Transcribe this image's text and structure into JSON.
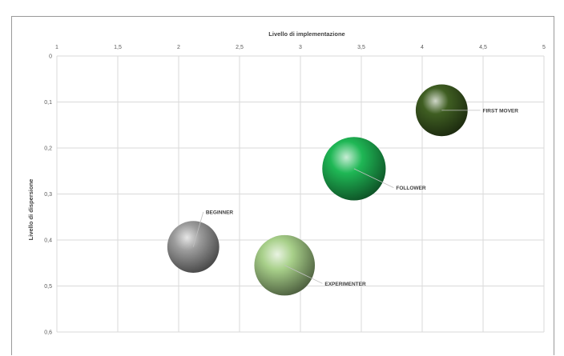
{
  "chart_data": {
    "type": "bubble",
    "xlabel": "Livello di implementazione",
    "ylabel": "Livello di dispersione",
    "xlim": [
      1,
      5
    ],
    "ylim": [
      0,
      0.6
    ],
    "y_reversed": true,
    "x_axis_position": "top",
    "grid": true,
    "x_ticks": [
      "1",
      "1,5",
      "2",
      "2,5",
      "3",
      "3,5",
      "4",
      "4,5",
      "5"
    ],
    "y_ticks": [
      "0",
      "0,1",
      "0,2",
      "0,3",
      "0,4",
      "0,5",
      "0,6"
    ],
    "series": [
      {
        "name": "BEGINNER",
        "x": 2.12,
        "y": 0.415,
        "size": 0.9,
        "color": "#9c9c9c",
        "label_position": "upper-right"
      },
      {
        "name": "EXPERIMENTER",
        "x": 2.87,
        "y": 0.455,
        "size": 1.05,
        "color": "#a8d08a",
        "label_position": "lower-right"
      },
      {
        "name": "FOLLOWER",
        "x": 3.44,
        "y": 0.245,
        "size": 1.1,
        "color": "#1fb755",
        "label_position": "lower-right"
      },
      {
        "name": "FIRST MOVER",
        "x": 4.16,
        "y": 0.118,
        "size": 0.9,
        "color": "#3f5e22",
        "label_position": "right"
      }
    ]
  }
}
